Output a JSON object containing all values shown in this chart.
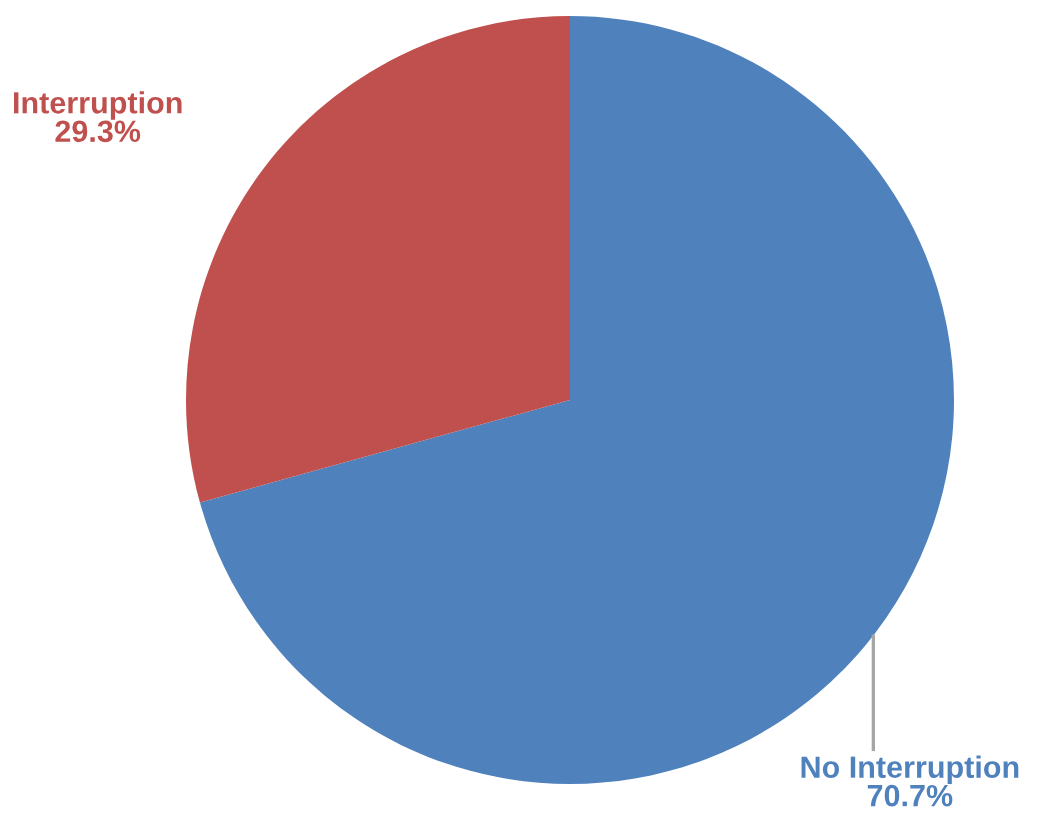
{
  "chart_data": {
    "type": "pie",
    "categories": [
      "No Interruption",
      "Interruption"
    ],
    "values": [
      70.7,
      29.3
    ],
    "colors": [
      "#4f81bd",
      "#c0504d"
    ],
    "value_labels": [
      "70.7%",
      "29.3%"
    ]
  }
}
